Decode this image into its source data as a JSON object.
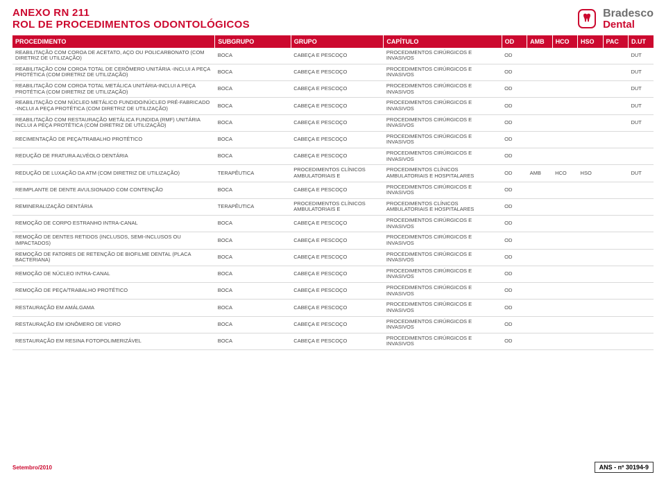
{
  "header": {
    "title_line1": "ANEXO RN 211",
    "title_line2": "ROL DE PROCEDIMENTOS ODONTOLÓGICOS",
    "brand": "Bradesco",
    "brand_sub": "Dental",
    "brand_color": "#cc092f",
    "brand_text_color": "#6e6e6e"
  },
  "columns": [
    "PROCEDIMENTO",
    "SUBGRUPO",
    "GRUPO",
    "CAPÍTULO",
    "OD",
    "AMB",
    "HCO",
    "HSO",
    "PAC",
    "D.UT"
  ],
  "rows": [
    {
      "proc": "REABILITAÇÃO COM COROA DE ACETATO, AÇO OU POLICARBONATO (COM DIRETRIZ DE UTILIZAÇÃO)",
      "sub": "BOCA",
      "grp": "CABEÇA E PESCOÇO",
      "cap": "PROCEDIMENTOS CIRÚRGICOS E INVASIVOS",
      "od": "OD",
      "amb": "",
      "hco": "",
      "hso": "",
      "pac": "",
      "dut": "DUT"
    },
    {
      "proc": "REABILITAÇÃO COM COROA TOTAL DE CERÔMERO UNITÁRIA -INCLUI A PEÇA PROTÉTICA (COM DIRETRIZ DE UTILIZAÇÃO)",
      "sub": "BOCA",
      "grp": "CABEÇA E PESCOÇO",
      "cap": "PROCEDIMENTOS CIRÚRGICOS E INVASIVOS",
      "od": "OD",
      "amb": "",
      "hco": "",
      "hso": "",
      "pac": "",
      "dut": "DUT"
    },
    {
      "proc": "REABILITAÇÃO COM COROA TOTAL METÁLICA UNITÁRIA-INCLUI A PEÇA PROTÉTICA (COM DIRETRIZ DE UTILIZAÇÃO)",
      "sub": "BOCA",
      "grp": "CABEÇA E PESCOÇO",
      "cap": "PROCEDIMENTOS CIRÚRGICOS E INVASIVOS",
      "od": "OD",
      "amb": "",
      "hco": "",
      "hso": "",
      "pac": "",
      "dut": "DUT"
    },
    {
      "proc": "REABILITAÇÃO COM NÚCLEO METÁLICO FUNDIDO/NÚCLEO PRÉ-FABRICADO -INCLUI A PEÇA PROTÉTICA (COM DIRETRIZ DE UTILIZAÇÃO)",
      "sub": "BOCA",
      "grp": "CABEÇA E PESCOÇO",
      "cap": "PROCEDIMENTOS CIRÚRGICOS E INVASIVOS",
      "od": "OD",
      "amb": "",
      "hco": "",
      "hso": "",
      "pac": "",
      "dut": "DUT"
    },
    {
      "proc": "REABILITAÇÃO COM RESTAURAÇÃO METÁLICA FUNDIDA (RMF) UNITÁRIA INCLUI A PEÇA PROTÉTICA (COM DIRETRIZ DE UTILIZAÇÃO)",
      "sub": "BOCA",
      "grp": "CABEÇA E PESCOÇO",
      "cap": "PROCEDIMENTOS CIRÚRGICOS E INVASIVOS",
      "od": "OD",
      "amb": "",
      "hco": "",
      "hso": "",
      "pac": "",
      "dut": "DUT"
    },
    {
      "proc": "RECIMENTAÇÃO DE PEÇA/TRABALHO PROTÉTICO",
      "sub": "BOCA",
      "grp": "CABEÇA E PESCOÇO",
      "cap": "PROCEDIMENTOS CIRÚRGICOS E INVASIVOS",
      "od": "OD",
      "amb": "",
      "hco": "",
      "hso": "",
      "pac": "",
      "dut": ""
    },
    {
      "proc": "REDUÇÃO DE FRATURA ALVÉOLO DENTÁRIA",
      "sub": "BOCA",
      "grp": "CABEÇA E PESCOÇO",
      "cap": "PROCEDIMENTOS CIRÚRGICOS E INVASIVOS",
      "od": "OD",
      "amb": "",
      "hco": "",
      "hso": "",
      "pac": "",
      "dut": ""
    },
    {
      "proc": "REDUÇÃO DE LUXAÇÃO DA ATM (COM DIRETRIZ DE UTILIZAÇÃO)",
      "sub": "TERAPÊUTICA",
      "grp": "PROCEDIMENTOS CLÍNICOS AMBULATORIAIS E",
      "cap": "PROCEDIMENTOS CLÍNICOS AMBULATORIAIS E HOSPITALARES",
      "od": "OD",
      "amb": "AMB",
      "hco": "HCO",
      "hso": "HSO",
      "pac": "",
      "dut": "DUT"
    },
    {
      "proc": "REIMPLANTE DE DENTE AVULSIONADO COM CONTENÇÃO",
      "sub": "BOCA",
      "grp": "CABEÇA E PESCOÇO",
      "cap": "PROCEDIMENTOS CIRÚRGICOS E INVASIVOS",
      "od": "OD",
      "amb": "",
      "hco": "",
      "hso": "",
      "pac": "",
      "dut": ""
    },
    {
      "proc": "REMINERALIZAÇÃO DENTÁRIA",
      "sub": "TERAPÊUTICA",
      "grp": "PROCEDIMENTOS CLÍNICOS AMBULATORIAIS E",
      "cap": "PROCEDIMENTOS CLÍNICOS AMBULATORIAIS E HOSPITALARES",
      "od": "OD",
      "amb": "",
      "hco": "",
      "hso": "",
      "pac": "",
      "dut": ""
    },
    {
      "proc": "REMOÇÃO DE CORPO ESTRANHO INTRA-CANAL",
      "sub": "BOCA",
      "grp": "CABEÇA E PESCOÇO",
      "cap": "PROCEDIMENTOS CIRÚRGICOS E INVASIVOS",
      "od": "OD",
      "amb": "",
      "hco": "",
      "hso": "",
      "pac": "",
      "dut": ""
    },
    {
      "proc": "REMOÇÃO DE DENTES RETIDOS (INCLUSOS, SEMI-INCLUSOS OU IMPACTADOS)",
      "sub": "BOCA",
      "grp": "CABEÇA E PESCOÇO",
      "cap": "PROCEDIMENTOS CIRÚRGICOS E INVASIVOS",
      "od": "OD",
      "amb": "",
      "hco": "",
      "hso": "",
      "pac": "",
      "dut": ""
    },
    {
      "proc": "REMOÇÃO DE FATORES DE RETENÇÃO DE BIOFILME DENTAL (PLACA BACTERIANA)",
      "sub": "BOCA",
      "grp": "CABEÇA E PESCOÇO",
      "cap": "PROCEDIMENTOS CIRÚRGICOS E INVASIVOS",
      "od": "OD",
      "amb": "",
      "hco": "",
      "hso": "",
      "pac": "",
      "dut": ""
    },
    {
      "proc": "REMOÇÃO DE NÚCLEO INTRA-CANAL",
      "sub": "BOCA",
      "grp": "CABEÇA E PESCOÇO",
      "cap": "PROCEDIMENTOS CIRÚRGICOS E INVASIVOS",
      "od": "OD",
      "amb": "",
      "hco": "",
      "hso": "",
      "pac": "",
      "dut": ""
    },
    {
      "proc": "REMOÇÃO DE PEÇA/TRABALHO PROTÉTICO",
      "sub": "BOCA",
      "grp": "CABEÇA E PESCOÇO",
      "cap": "PROCEDIMENTOS CIRÚRGICOS E INVASIVOS",
      "od": "OD",
      "amb": "",
      "hco": "",
      "hso": "",
      "pac": "",
      "dut": ""
    },
    {
      "proc": "RESTAURAÇÃO EM AMÁLGAMA",
      "sub": "BOCA",
      "grp": "CABEÇA E PESCOÇO",
      "cap": "PROCEDIMENTOS CIRÚRGICOS E INVASIVOS",
      "od": "OD",
      "amb": "",
      "hco": "",
      "hso": "",
      "pac": "",
      "dut": ""
    },
    {
      "proc": "RESTAURAÇÃO EM IONÔMERO DE VIDRO",
      "sub": "BOCA",
      "grp": "CABEÇA E PESCOÇO",
      "cap": "PROCEDIMENTOS CIRÚRGICOS E INVASIVOS",
      "od": "OD",
      "amb": "",
      "hco": "",
      "hso": "",
      "pac": "",
      "dut": ""
    },
    {
      "proc": "RESTAURAÇÃO EM RESINA FOTOPOLIMERIZÁVEL",
      "sub": "BOCA",
      "grp": "CABEÇA E PESCOÇO",
      "cap": "PROCEDIMENTOS CIRÚRGICOS E INVASIVOS",
      "od": "OD",
      "amb": "",
      "hco": "",
      "hso": "",
      "pac": "",
      "dut": ""
    }
  ],
  "footer": {
    "date": "Setembro/2010",
    "ans": "ANS - nº 30194-9"
  },
  "style": {
    "header_bg": "#cc092f",
    "row_border": "#d9d9d9",
    "text_color": "#4a4a4a",
    "font_size_body": 7.5,
    "font_size_header": 9
  }
}
